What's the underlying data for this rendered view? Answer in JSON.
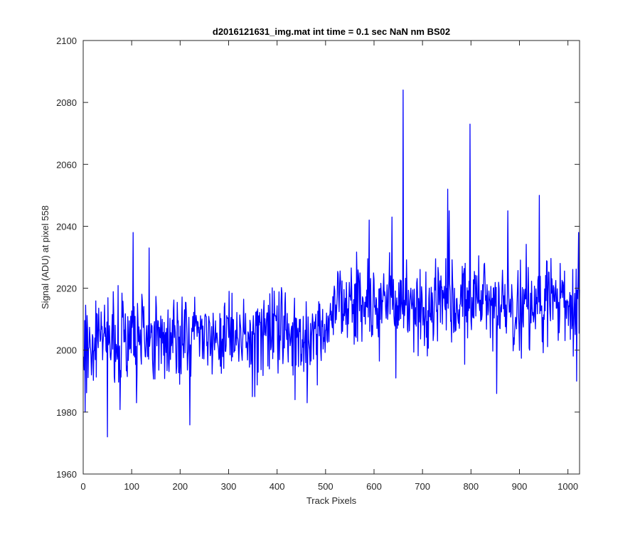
{
  "chart_data": {
    "type": "line",
    "title": "d2016121631_img.mat int time = 0.1 sec  NaN nm BS02",
    "xlabel": "Track Pixels",
    "ylabel": "Signal (ADU) at pixel 558",
    "xlim": [
      0,
      1024
    ],
    "ylim": [
      1960,
      2100
    ],
    "xticks": [
      0,
      100,
      200,
      300,
      400,
      500,
      600,
      700,
      800,
      900,
      1000
    ],
    "yticks": [
      1960,
      1980,
      2000,
      2020,
      2040,
      2060,
      2080,
      2100
    ],
    "grid": false,
    "box": true,
    "series": [
      {
        "color": "#0000ff",
        "n_points": 1024,
        "x_start": 1,
        "trend": [
          [
            0,
            2003
          ],
          [
            250,
            2005
          ],
          [
            500,
            2007
          ],
          [
            530,
            2015
          ],
          [
            1024,
            2015
          ]
        ],
        "noise_sd": 7,
        "seed": 20161216,
        "anchors": [
          [
            4,
            1980
          ],
          [
            50,
            1972
          ],
          [
            103,
            2038
          ],
          [
            110,
            1983
          ],
          [
            136,
            2033
          ],
          [
            349,
            1985
          ],
          [
            354,
            1985
          ],
          [
            437,
            1984
          ],
          [
            462,
            1983
          ],
          [
            590,
            2042
          ],
          [
            637,
            2043
          ],
          [
            645,
            1991
          ],
          [
            660,
            2084
          ],
          [
            752,
            2052
          ],
          [
            755,
            2045
          ],
          [
            798,
            2073
          ],
          [
            853,
            1986
          ],
          [
            876,
            2045
          ],
          [
            941,
            2050
          ],
          [
            1018,
            1990
          ],
          [
            1022,
            2038
          ]
        ]
      }
    ]
  }
}
